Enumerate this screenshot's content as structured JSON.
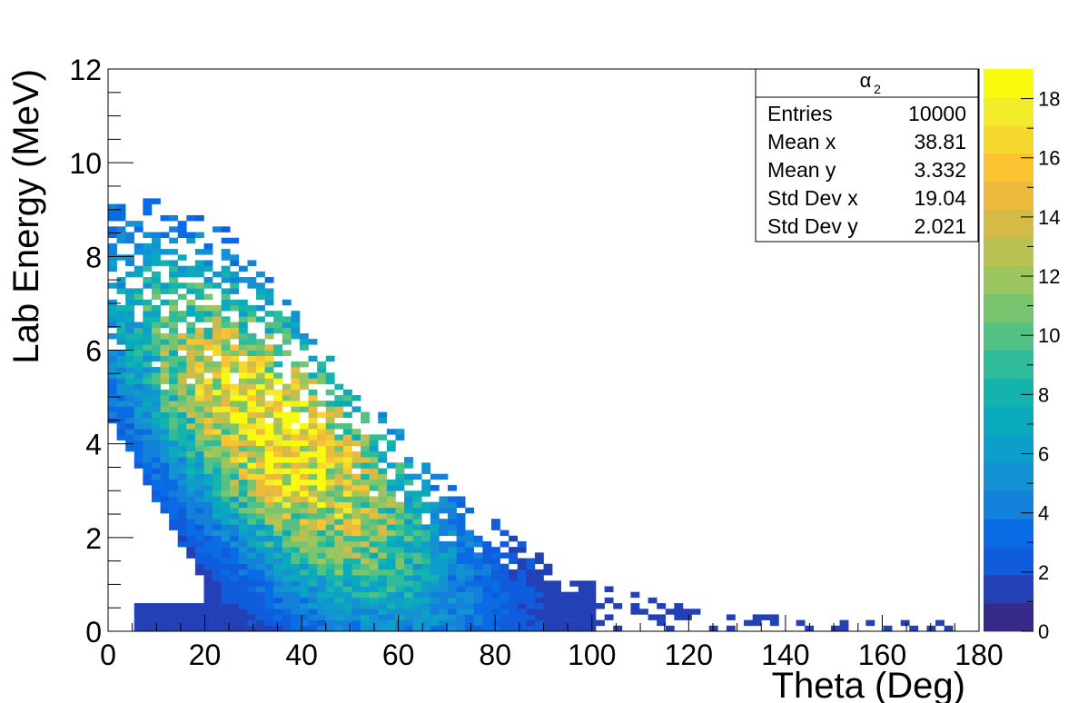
{
  "chart_data": {
    "type": "heatmap",
    "xlabel": "Theta (Deg)",
    "ylabel": "Lab Energy (MeV)",
    "xlim": [
      0,
      180
    ],
    "ylim": [
      0,
      12
    ],
    "x_ticks": [
      "0",
      "20",
      "40",
      "60",
      "80",
      "100",
      "120",
      "140",
      "160",
      "180"
    ],
    "y_ticks": [
      "0",
      "2",
      "4",
      "6",
      "8",
      "10",
      "12"
    ],
    "bin_width_x": 1.8,
    "bin_height_y": 0.12,
    "colorbar": {
      "zlim": [
        0,
        19
      ],
      "ticks": [
        "0",
        "2",
        "4",
        "6",
        "8",
        "10",
        "12",
        "14",
        "16",
        "18"
      ],
      "palette": [
        "#352a87",
        "#2440b6",
        "#0f5cdd",
        "#0a6ce4",
        "#1380d9",
        "#1391d2",
        "#0d9fc9",
        "#0aaabd",
        "#14b3ad",
        "#2fbc9a",
        "#52c183",
        "#78c46f",
        "#9bc55e",
        "#b9c152",
        "#d4bb48",
        "#ebb93c",
        "#fbc331",
        "#f6d72d",
        "#f3ec2b",
        "#f9fb0e"
      ]
    },
    "distribution": {
      "total_entries": 10000,
      "description_points": [
        {
          "x": 5,
          "y_max": 9.3
        },
        {
          "x": 25,
          "y_max": 8.6
        },
        {
          "x": 50,
          "y_max": 5.3
        },
        {
          "x": 75,
          "y_max": 2.7
        },
        {
          "x": 95,
          "y_max": 1.1
        },
        {
          "x": 125,
          "y_max": 0.3
        },
        {
          "x": 165,
          "y_max": 0.15
        }
      ],
      "peak": {
        "x": 35,
        "y": 4.2
      }
    }
  },
  "stats_box": {
    "title_symbol": "α",
    "title_subscript": "2",
    "rows": [
      {
        "label": "Entries",
        "value": "10000"
      },
      {
        "label": "Mean x",
        "value": "38.81"
      },
      {
        "label": "Mean y",
        "value": "3.332"
      },
      {
        "label": "Std Dev x",
        "value": "19.04"
      },
      {
        "label": "Std Dev y",
        "value": "2.021"
      }
    ]
  }
}
